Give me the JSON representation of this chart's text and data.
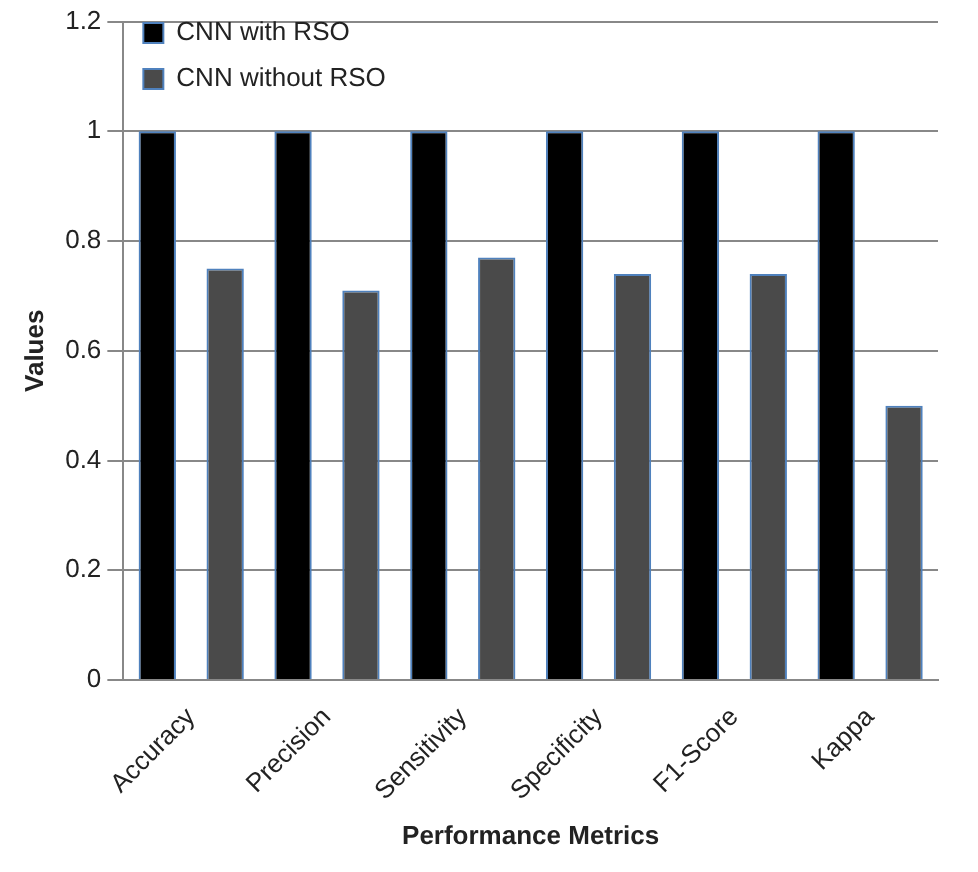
{
  "chart_data": {
    "type": "bar",
    "xlabel": "Performance Metrics",
    "ylabel": "Values",
    "categories": [
      "Accuracy",
      "Precision",
      "Sensitivity",
      "Specificity",
      "F1-Score",
      "Kappa"
    ],
    "series": [
      {
        "name": "CNN with RSO",
        "color": "#000000",
        "values": [
          1,
          1,
          1,
          1,
          1,
          1
        ]
      },
      {
        "name": "CNN without RSO",
        "color": "#4a4a4a",
        "values": [
          0.75,
          0.71,
          0.77,
          0.74,
          0.74,
          0.5
        ]
      }
    ],
    "ylim": [
      0,
      1.2
    ],
    "yticks": [
      0,
      0.2,
      0.4,
      0.6,
      0.8,
      1,
      1.2
    ],
    "grid": "y",
    "legend": "top left"
  }
}
